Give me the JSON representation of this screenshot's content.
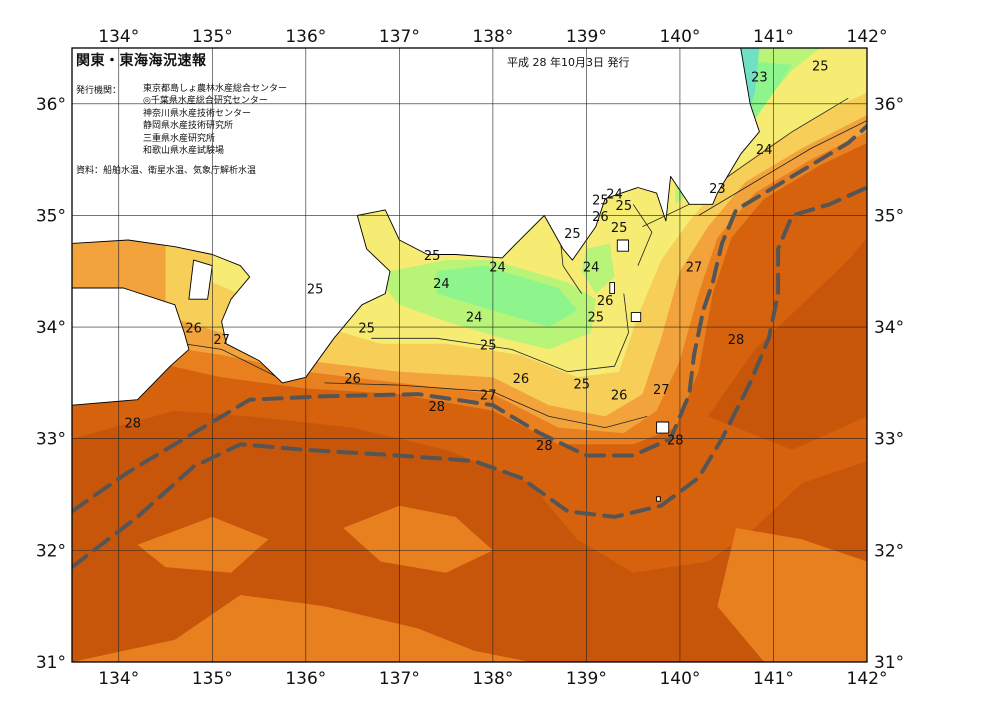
{
  "title": "関東・東海海況速報",
  "issue_date": "平成 28 年10月3日 発行",
  "issuer_label": "発行機関：",
  "issuers": [
    "東京都島しょ農林水産総合センター",
    "◎千葉県水産総合研究センター",
    "神奈川県水産技術センター",
    "静岡県水産技術研究所",
    "三重県水産研究所",
    "和歌山県水産試験場"
  ],
  "source_note": "資料：船舶水温、衛星水温、気象庁解析水温",
  "map": {
    "lon_range": [
      133.5,
      142.0
    ],
    "lat_range": [
      31.0,
      36.5
    ],
    "lon_ticks": [
      "134°",
      "135°",
      "136°",
      "137°",
      "138°",
      "139°",
      "140°",
      "141°",
      "142°"
    ],
    "lat_ticks": [
      "31°",
      "32°",
      "33°",
      "34°",
      "35°",
      "36°"
    ],
    "colors": {
      "t22": "#6fe0c4",
      "t23": "#8ef58c",
      "t24": "#b7f478",
      "t25": "#f6ec74",
      "t26": "#f7cf58",
      "t27": "#f2a33c",
      "t28": "#e9801f",
      "t29": "#d7620e",
      "t30": "#b94c08",
      "land": "#ffffff",
      "current_line": "#555555"
    },
    "isotherm_labels": [
      {
        "lon": 141.5,
        "lat": 36.3,
        "text": "25"
      },
      {
        "lon": 140.85,
        "lat": 36.2,
        "text": "23"
      },
      {
        "lon": 140.9,
        "lat": 35.55,
        "text": "24"
      },
      {
        "lon": 140.4,
        "lat": 35.2,
        "text": "23"
      },
      {
        "lon": 139.4,
        "lat": 35.05,
        "text": "25"
      },
      {
        "lon": 139.3,
        "lat": 35.15,
        "text": "24"
      },
      {
        "lon": 139.15,
        "lat": 35.1,
        "text": "25"
      },
      {
        "lon": 139.15,
        "lat": 34.95,
        "text": "26"
      },
      {
        "lon": 139.35,
        "lat": 34.85,
        "text": "25"
      },
      {
        "lon": 138.85,
        "lat": 34.8,
        "text": "25"
      },
      {
        "lon": 137.35,
        "lat": 34.6,
        "text": "25"
      },
      {
        "lon": 139.05,
        "lat": 34.5,
        "text": "24"
      },
      {
        "lon": 138.05,
        "lat": 34.5,
        "text": "24"
      },
      {
        "lon": 137.45,
        "lat": 34.35,
        "text": "24"
      },
      {
        "lon": 139.2,
        "lat": 34.2,
        "text": "26"
      },
      {
        "lon": 139.1,
        "lat": 34.05,
        "text": "25"
      },
      {
        "lon": 137.8,
        "lat": 34.05,
        "text": "24"
      },
      {
        "lon": 140.15,
        "lat": 34.5,
        "text": "27"
      },
      {
        "lon": 136.1,
        "lat": 34.3,
        "text": "25"
      },
      {
        "lon": 136.65,
        "lat": 33.95,
        "text": "25"
      },
      {
        "lon": 137.95,
        "lat": 33.8,
        "text": "25"
      },
      {
        "lon": 134.8,
        "lat": 33.95,
        "text": "26"
      },
      {
        "lon": 135.1,
        "lat": 33.85,
        "text": "27"
      },
      {
        "lon": 140.6,
        "lat": 33.85,
        "text": "28"
      },
      {
        "lon": 136.5,
        "lat": 33.5,
        "text": "26"
      },
      {
        "lon": 138.3,
        "lat": 33.5,
        "text": "26"
      },
      {
        "lon": 138.95,
        "lat": 33.45,
        "text": "25"
      },
      {
        "lon": 139.35,
        "lat": 33.35,
        "text": "26"
      },
      {
        "lon": 139.8,
        "lat": 33.4,
        "text": "27"
      },
      {
        "lon": 137.95,
        "lat": 33.35,
        "text": "27"
      },
      {
        "lon": 137.4,
        "lat": 33.25,
        "text": "28"
      },
      {
        "lon": 134.15,
        "lat": 33.1,
        "text": "28"
      },
      {
        "lon": 139.95,
        "lat": 32.95,
        "text": "28"
      },
      {
        "lon": 138.55,
        "lat": 32.9,
        "text": "28"
      }
    ],
    "kuroshio_axes": [
      [
        [
          133.5,
          32.35
        ],
        [
          134.1,
          32.7
        ],
        [
          134.8,
          33.05
        ],
        [
          135.4,
          33.35
        ],
        [
          136.2,
          33.38
        ],
        [
          137.2,
          33.4
        ],
        [
          138.0,
          33.3
        ],
        [
          138.5,
          33.05
        ],
        [
          139.0,
          32.85
        ],
        [
          139.5,
          32.85
        ],
        [
          139.9,
          33.0
        ],
        [
          140.1,
          33.4
        ],
        [
          140.15,
          33.75
        ],
        [
          140.25,
          34.15
        ],
        [
          140.35,
          34.4
        ],
        [
          140.45,
          34.75
        ],
        [
          140.6,
          35.05
        ],
        [
          141.2,
          35.35
        ],
        [
          141.8,
          35.65
        ],
        [
          142.0,
          35.8
        ]
      ],
      [
        [
          133.5,
          31.85
        ],
        [
          134.2,
          32.3
        ],
        [
          134.8,
          32.75
        ],
        [
          135.3,
          32.95
        ],
        [
          136.0,
          32.9
        ],
        [
          137.0,
          32.85
        ],
        [
          137.8,
          32.8
        ],
        [
          138.3,
          32.65
        ],
        [
          138.8,
          32.35
        ],
        [
          139.3,
          32.3
        ],
        [
          139.8,
          32.4
        ],
        [
          140.2,
          32.65
        ],
        [
          140.45,
          33.0
        ],
        [
          140.75,
          33.5
        ],
        [
          140.95,
          33.9
        ],
        [
          141.05,
          34.3
        ],
        [
          141.05,
          34.7
        ],
        [
          141.2,
          35.0
        ],
        [
          141.6,
          35.1
        ],
        [
          142.0,
          35.25
        ]
      ]
    ]
  }
}
